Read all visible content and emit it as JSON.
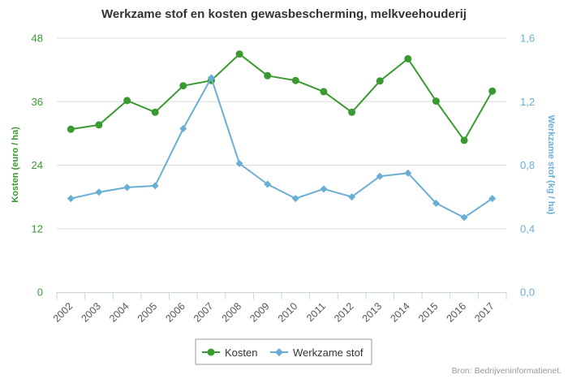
{
  "chart_data": {
    "type": "line",
    "title": "Werkzame stof en kosten gewasbescherming, melkveehouderij",
    "categories": [
      "2002",
      "2003",
      "2004",
      "2005",
      "2006",
      "2007",
      "2008",
      "2009",
      "2010",
      "2011",
      "2012",
      "2013",
      "2014",
      "2015",
      "2016",
      "2017"
    ],
    "y_left": {
      "label": "Kosten (euro / ha)",
      "ticks": [
        "0",
        "12",
        "24",
        "36",
        "48"
      ],
      "range": [
        0,
        48
      ]
    },
    "y_right": {
      "label": "Werkzame stof (kg / ha)",
      "ticks": [
        "0,0",
        "0,4",
        "0,8",
        "1,2",
        "1,6"
      ],
      "range": [
        0,
        1.6
      ]
    },
    "series": [
      {
        "name": "Kosten",
        "axis": "left",
        "color": "#3a9a32",
        "marker": "circle",
        "values": [
          30.8,
          31.6,
          36.2,
          34.0,
          39.0,
          40.0,
          45.0,
          40.9,
          40.0,
          37.9,
          34.0,
          39.9,
          44.1,
          36.1,
          28.7,
          38.0
        ]
      },
      {
        "name": "Werkzame stof",
        "axis": "right",
        "color": "#6aaed6",
        "marker": "diamond",
        "values": [
          0.59,
          0.63,
          0.66,
          0.67,
          1.03,
          1.35,
          0.81,
          0.68,
          0.59,
          0.65,
          0.6,
          0.73,
          0.75,
          0.56,
          0.47,
          0.59
        ]
      }
    ],
    "legend_position": "bottom-center",
    "grid": "horizontal",
    "credit": "Bron: Bedrijveninformatienet."
  }
}
